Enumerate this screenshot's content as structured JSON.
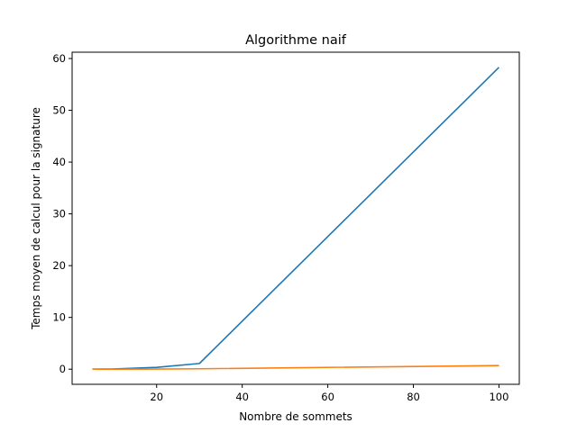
{
  "chart_data": {
    "type": "line",
    "title": "Algorithme naif",
    "xlabel": "Nombre de sommets",
    "ylabel": "Temps moyen de calcul pour la signature",
    "xlim": [
      0.25,
      104.75
    ],
    "ylim": [
      -2.92,
      61.22
    ],
    "xticks": [
      20,
      40,
      60,
      80,
      100
    ],
    "yticks": [
      0,
      10,
      20,
      30,
      40,
      50,
      60
    ],
    "grid": false,
    "series": [
      {
        "color": "#1f77b4",
        "x": [
          5,
          10,
          20,
          30,
          100
        ],
        "y": [
          0.0,
          0.05,
          0.35,
          1.1,
          58.3
        ]
      },
      {
        "color": "#ff7f0e",
        "x": [
          5,
          10,
          20,
          30,
          100
        ],
        "y": [
          0.0,
          0.0,
          0.02,
          0.08,
          0.7
        ]
      }
    ]
  }
}
